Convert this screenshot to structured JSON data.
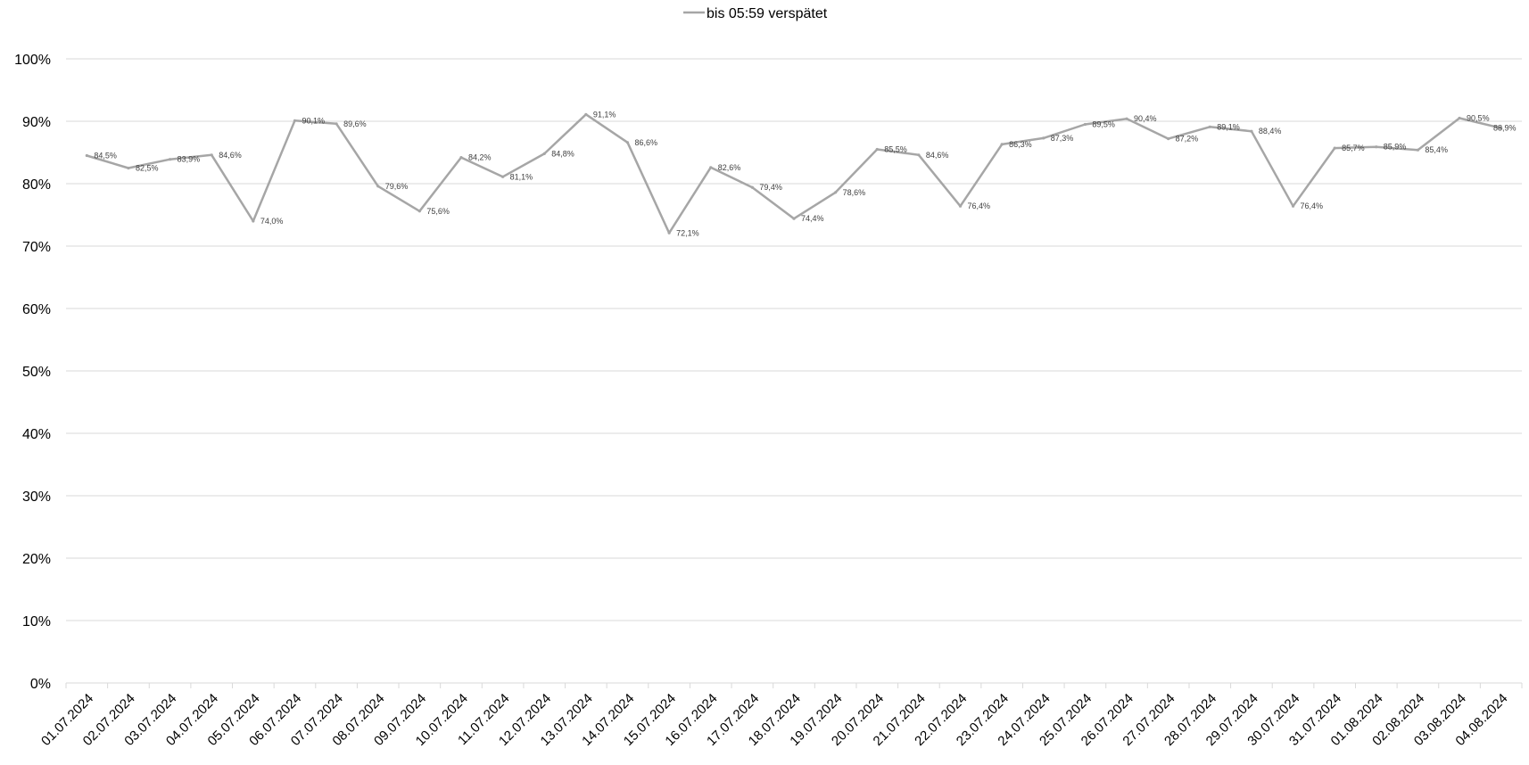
{
  "chart_data": {
    "type": "line",
    "title": "",
    "xlabel": "",
    "ylabel": "",
    "ylim": [
      0,
      100
    ],
    "y_ticks": [
      "0%",
      "10%",
      "20%",
      "30%",
      "40%",
      "50%",
      "60%",
      "70%",
      "80%",
      "90%",
      "100%"
    ],
    "y_tick_values": [
      0,
      10,
      20,
      30,
      40,
      50,
      60,
      70,
      80,
      90,
      100
    ],
    "grid": "horizontal",
    "legend_position": "top-center",
    "categories": [
      "01.07.2024",
      "02.07.2024",
      "03.07.2024",
      "04.07.2024",
      "05.07.2024",
      "06.07.2024",
      "07.07.2024",
      "08.07.2024",
      "09.07.2024",
      "10.07.2024",
      "11.07.2024",
      "12.07.2024",
      "13.07.2024",
      "14.07.2024",
      "15.07.2024",
      "16.07.2024",
      "17.07.2024",
      "18.07.2024",
      "19.07.2024",
      "20.07.2024",
      "21.07.2024",
      "22.07.2024",
      "23.07.2024",
      "24.07.2024",
      "25.07.2024",
      "26.07.2024",
      "27.07.2024",
      "28.07.2024",
      "29.07.2024",
      "30.07.2024",
      "31.07.2024",
      "01.08.2024",
      "02.08.2024",
      "03.08.2024",
      "04.08.2024"
    ],
    "series": [
      {
        "name": "bis 05:59 verspätet",
        "color": "#a6a6a6",
        "values": [
          84.5,
          82.5,
          83.9,
          84.6,
          74.0,
          90.1,
          89.6,
          79.6,
          75.6,
          84.2,
          81.1,
          84.8,
          91.1,
          86.6,
          72.1,
          82.6,
          79.4,
          74.4,
          78.6,
          85.5,
          84.6,
          76.4,
          86.3,
          87.3,
          89.5,
          90.4,
          87.2,
          89.1,
          88.4,
          76.4,
          85.7,
          85.9,
          85.4,
          90.5,
          88.9
        ],
        "labels": [
          "84,5%",
          "82,5%",
          "83,9%",
          "84,6%",
          "74,0%",
          "90,1%",
          "89,6%",
          "79,6%",
          "75,6%",
          "84,2%",
          "81,1%",
          "84,8%",
          "91,1%",
          "86,6%",
          "72,1%",
          "82,6%",
          "79,4%",
          "74,4%",
          "78,6%",
          "85,5%",
          "84,6%",
          "76,4%",
          "86,3%",
          "87,3%",
          "89,5%",
          "90,4%",
          "87,2%",
          "89,1%",
          "88,4%",
          "76,4%",
          "85,7%",
          "85,9%",
          "85,4%",
          "90,5%",
          "88,9%"
        ]
      }
    ]
  },
  "colors": {
    "series": "#a6a6a6",
    "grid": "#d9d9d9",
    "axis_text": "#000000",
    "label_text": "#404040"
  }
}
